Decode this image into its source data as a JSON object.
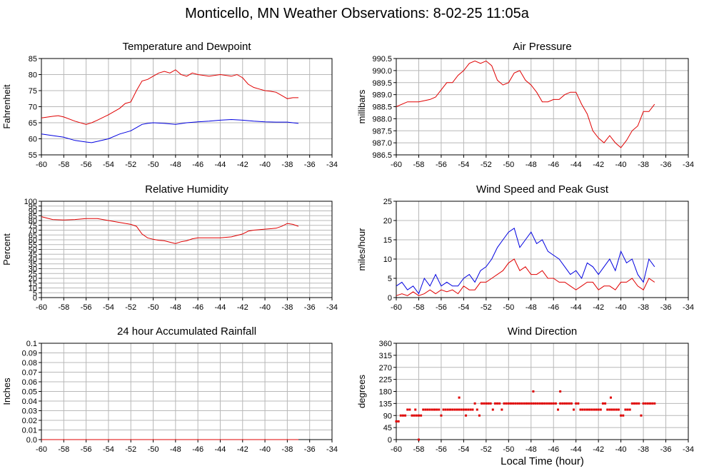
{
  "page": {
    "title": "Monticello, MN Weather Observations: 8-02-25 11:05a"
  },
  "colors": {
    "red": "#e00000",
    "blue": "#0000e0",
    "grid": "#b8b8b8",
    "axis": "#000000"
  },
  "chart_data": [
    {
      "type": "line",
      "title": "Temperature and Dewpoint",
      "ylabel": "Fahrenheit",
      "xlabel": "",
      "grid": true,
      "xlim": [
        -60,
        -34
      ],
      "ylim": [
        55,
        85
      ],
      "xticks": [
        "-60",
        "-58",
        "-56",
        "-54",
        "-52",
        "-50",
        "-48",
        "-46",
        "-44",
        "-42",
        "-40",
        "-38",
        "-36",
        "-34"
      ],
      "yticks": [
        "55",
        "60",
        "65",
        "70",
        "75",
        "80",
        "85"
      ],
      "series": [
        {
          "color": "red",
          "x": [
            -60,
            -59,
            -58.5,
            -58,
            -57,
            -56,
            -55.5,
            -55,
            -54,
            -53,
            -52.5,
            -52,
            -51.5,
            -51,
            -50.5,
            -50,
            -49.5,
            -49,
            -48.5,
            -48,
            -47.5,
            -47,
            -46.5,
            -46,
            -45,
            -44,
            -43,
            -42.5,
            -42,
            -41.5,
            -41,
            -40.5,
            -40,
            -39.5,
            -39,
            -38.5,
            -38,
            -37.5,
            -37
          ],
          "y": [
            66.5,
            67,
            67.2,
            66.8,
            65.5,
            64.5,
            65,
            65.8,
            67.5,
            69.5,
            71,
            71.5,
            75,
            78,
            78.5,
            79.5,
            80.5,
            81,
            80.5,
            81.5,
            80,
            79.5,
            80.5,
            80,
            79.5,
            80,
            79.5,
            80,
            79,
            77,
            76,
            75.5,
            75,
            74.8,
            74.5,
            73.5,
            72.5,
            72.8,
            72.8
          ]
        },
        {
          "color": "blue",
          "x": [
            -60,
            -59,
            -58,
            -57,
            -56,
            -55.5,
            -55,
            -54,
            -53,
            -52,
            -51.5,
            -51,
            -50.5,
            -50,
            -49,
            -48,
            -47,
            -46,
            -45,
            -44,
            -43,
            -42,
            -41,
            -40,
            -39,
            -38,
            -37.5,
            -37
          ],
          "y": [
            61.5,
            61,
            60.5,
            59.5,
            59,
            58.8,
            59.2,
            60,
            61.5,
            62.5,
            63.5,
            64.5,
            64.8,
            65,
            64.8,
            64.5,
            65,
            65.3,
            65.5,
            65.8,
            66,
            65.8,
            65.5,
            65.3,
            65.2,
            65.2,
            65,
            64.8
          ]
        }
      ]
    },
    {
      "type": "line",
      "title": "Air Pressure",
      "ylabel": "millibars",
      "xlabel": "",
      "grid": true,
      "xlim": [
        -60,
        -34
      ],
      "ylim": [
        986.5,
        990.5
      ],
      "xticks": [
        "-60",
        "-58",
        "-56",
        "-54",
        "-52",
        "-50",
        "-48",
        "-46",
        "-44",
        "-42",
        "-40",
        "-38",
        "-36",
        "-34"
      ],
      "yticks": [
        "986.5",
        "987.0",
        "987.5",
        "988.0",
        "988.5",
        "989.0",
        "989.5",
        "990.0",
        "990.5"
      ],
      "series": [
        {
          "color": "red",
          "x": [
            -60,
            -59,
            -58,
            -57,
            -56.5,
            -56,
            -55.5,
            -55,
            -54.5,
            -54,
            -53.5,
            -53,
            -52.5,
            -52,
            -51.5,
            -51,
            -50.5,
            -50,
            -49.5,
            -49,
            -48.5,
            -48,
            -47.5,
            -47,
            -46.5,
            -46,
            -45.5,
            -45,
            -44.5,
            -44,
            -43.5,
            -43,
            -42.5,
            -42,
            -41.5,
            -41,
            -40.5,
            -40,
            -39.5,
            -39,
            -38.5,
            -38,
            -37.5,
            -37
          ],
          "y": [
            988.5,
            988.7,
            988.7,
            988.8,
            988.9,
            989.2,
            989.5,
            989.5,
            989.8,
            990.0,
            990.3,
            990.4,
            990.3,
            990.4,
            990.2,
            989.6,
            989.4,
            989.5,
            989.9,
            990.0,
            989.6,
            989.4,
            989.1,
            988.7,
            988.7,
            988.8,
            988.8,
            989.0,
            989.1,
            989.1,
            988.6,
            988.2,
            987.5,
            987.2,
            987.0,
            987.3,
            987.0,
            986.8,
            987.1,
            987.5,
            987.7,
            988.3,
            988.3,
            988.6
          ]
        }
      ]
    },
    {
      "type": "line",
      "title": "Relative Humidity",
      "ylabel": "Percent",
      "xlabel": "",
      "grid": true,
      "xlim": [
        -60,
        -34
      ],
      "ylim": [
        0,
        100
      ],
      "xticks": [
        "-60",
        "-58",
        "-56",
        "-54",
        "-52",
        "-50",
        "-48",
        "-46",
        "-44",
        "-42",
        "-40",
        "-38",
        "-36",
        "-34"
      ],
      "yticks": [
        "0",
        "5",
        "10",
        "15",
        "20",
        "25",
        "30",
        "35",
        "40",
        "45",
        "50",
        "55",
        "60",
        "65",
        "70",
        "75",
        "80",
        "85",
        "90",
        "95",
        "100"
      ],
      "series": [
        {
          "color": "red",
          "x": [
            -60,
            -59,
            -58,
            -57,
            -56,
            -55,
            -54.5,
            -54,
            -53,
            -52,
            -51.5,
            -51,
            -50.5,
            -50,
            -49.5,
            -49,
            -48.5,
            -48,
            -47.5,
            -47,
            -46.5,
            -46,
            -45,
            -44,
            -43,
            -42,
            -41.5,
            -41,
            -40,
            -39,
            -38.5,
            -38,
            -37.5,
            -37
          ],
          "y": [
            84,
            81,
            80.5,
            81,
            82,
            82,
            81,
            80,
            78,
            76,
            74,
            66,
            62,
            60.5,
            59.5,
            59,
            57.5,
            56,
            58,
            59,
            61,
            62,
            62,
            62,
            63,
            66,
            69,
            70,
            71,
            72,
            74,
            77,
            76,
            74
          ]
        }
      ]
    },
    {
      "type": "line",
      "title": "Wind Speed and Peak Gust",
      "ylabel": "miles/hour",
      "xlabel": "",
      "grid": true,
      "xlim": [
        -60,
        -34
      ],
      "ylim": [
        0,
        25
      ],
      "xticks": [
        "-60",
        "-58",
        "-56",
        "-54",
        "-52",
        "-50",
        "-48",
        "-46",
        "-44",
        "-42",
        "-40",
        "-38",
        "-36",
        "-34"
      ],
      "yticks": [
        "0",
        "5",
        "10",
        "15",
        "20",
        "25"
      ],
      "series": [
        {
          "color": "blue",
          "x": [
            -60,
            -59.5,
            -59,
            -58.5,
            -58,
            -57.5,
            -57,
            -56.5,
            -56,
            -55.5,
            -55,
            -54.5,
            -54,
            -53.5,
            -53,
            -52.5,
            -52,
            -51.5,
            -51,
            -50.5,
            -50,
            -49.5,
            -49,
            -48.5,
            -48,
            -47.5,
            -47,
            -46.5,
            -46,
            -45.5,
            -45,
            -44.5,
            -44,
            -43.5,
            -43,
            -42.5,
            -42,
            -41.5,
            -41,
            -40.5,
            -40,
            -39.5,
            -39,
            -38.5,
            -38,
            -37.5,
            -37
          ],
          "y": [
            3,
            4,
            2,
            3,
            1,
            5,
            3,
            6,
            3,
            4,
            3,
            3,
            5,
            6,
            4,
            7,
            8,
            10,
            13,
            15,
            17,
            18,
            13,
            15,
            17,
            14,
            15,
            12,
            11,
            10,
            8,
            6,
            7,
            5,
            9,
            8,
            6,
            8,
            10,
            7,
            12,
            9,
            10,
            6,
            4,
            10,
            8
          ]
        },
        {
          "color": "red",
          "x": [
            -60,
            -59.5,
            -59,
            -58.5,
            -58,
            -57.5,
            -57,
            -56.5,
            -56,
            -55.5,
            -55,
            -54.5,
            -54,
            -53.5,
            -53,
            -52.5,
            -52,
            -51.5,
            -51,
            -50.5,
            -50,
            -49.5,
            -49,
            -48.5,
            -48,
            -47.5,
            -47,
            -46.5,
            -46,
            -45.5,
            -45,
            -44.5,
            -44,
            -43.5,
            -43,
            -42.5,
            -42,
            -41.5,
            -41,
            -40.5,
            -40,
            -39.5,
            -39,
            -38.5,
            -38,
            -37.5,
            -37
          ],
          "y": [
            0.5,
            1,
            0.5,
            1.5,
            0.5,
            1,
            2,
            1,
            2,
            1.5,
            2,
            1,
            3,
            2,
            2,
            4,
            4,
            5,
            6,
            7,
            9,
            10,
            7,
            8,
            6,
            6,
            7,
            5,
            5,
            4,
            4,
            3,
            2,
            3,
            4,
            4,
            2,
            3,
            3,
            2,
            4,
            4,
            5,
            3,
            2,
            5,
            4
          ]
        }
      ]
    },
    {
      "type": "line",
      "title": "24 hour Accumulated Rainfall",
      "ylabel": "Inches",
      "xlabel": "",
      "grid": true,
      "xlim": [
        -60,
        -34
      ],
      "ylim": [
        0,
        0.1
      ],
      "xticks": [
        "-60",
        "-58",
        "-56",
        "-54",
        "-52",
        "-50",
        "-48",
        "-46",
        "-44",
        "-42",
        "-40",
        "-38",
        "-36",
        "-34"
      ],
      "yticks": [
        "0.0",
        "0.01",
        "0.02",
        "0.03",
        "0.04",
        "0.05",
        "0.06",
        "0.07",
        "0.08",
        "0.09",
        "0.1"
      ],
      "series": [
        {
          "color": "red",
          "x": [
            -60,
            -37
          ],
          "y": [
            0,
            0
          ]
        }
      ]
    },
    {
      "type": "scatter",
      "title": "Wind Direction",
      "ylabel": "degrees",
      "xlabel": "Local Time (hour)",
      "grid": true,
      "xlim": [
        -60,
        -34
      ],
      "ylim": [
        0,
        360
      ],
      "xticks": [
        "-60",
        "-58",
        "-56",
        "-54",
        "-52",
        "-50",
        "-48",
        "-46",
        "-44",
        "-42",
        "-40",
        "-38",
        "-36",
        "-34"
      ],
      "yticks": [
        "0",
        "45",
        "90",
        "135",
        "180",
        "225",
        "270",
        "315",
        "360"
      ],
      "series": [
        {
          "color": "red",
          "x": [
            -60,
            -59.8,
            -59.6,
            -59.4,
            -59.2,
            -59,
            -58.8,
            -58.6,
            -58.4,
            -58.2,
            -58,
            -57.8,
            -57.6,
            -57.4,
            -57.2,
            -57,
            -56.8,
            -56.6,
            -56.4,
            -56.2,
            -56,
            -55.8,
            -55.6,
            -55.4,
            -55.2,
            -55,
            -54.8,
            -54.6,
            -54.4,
            -54.2,
            -54,
            -53.8,
            -53.6,
            -53.4,
            -53.2,
            -53,
            -52.8,
            -52.6,
            -52.4,
            -52.2,
            -52,
            -51.8,
            -51.6,
            -51.4,
            -51.2,
            -51,
            -50.8,
            -50.6,
            -50.4,
            -50.2,
            -50,
            -49.8,
            -49.6,
            -49.4,
            -49.2,
            -49,
            -48.8,
            -48.6,
            -48.4,
            -48.2,
            -48,
            -47.8,
            -47.6,
            -47.4,
            -47.2,
            -47,
            -46.8,
            -46.6,
            -46.4,
            -46.2,
            -46,
            -45.8,
            -45.6,
            -45.4,
            -45.2,
            -45,
            -44.8,
            -44.6,
            -44.4,
            -44.2,
            -44,
            -43.8,
            -43.6,
            -43.4,
            -43.2,
            -43,
            -42.8,
            -42.6,
            -42.4,
            -42.2,
            -42,
            -41.8,
            -41.6,
            -41.4,
            -41.2,
            -41,
            -40.8,
            -40.6,
            -40.4,
            -40.2,
            -40,
            -39.8,
            -39.6,
            -39.4,
            -39.2,
            -39,
            -38.8,
            -38.6,
            -38.4,
            -38.2,
            -38,
            -37.8,
            -37.6,
            -37.4,
            -37.2,
            -37,
            -58,
            -54.4,
            -47.8,
            -45.4,
            -40.9,
            -53.8,
            -58.3
          ],
          "y": [
            68,
            68,
            90,
            90,
            90,
            112,
            112,
            90,
            90,
            90,
            90,
            90,
            112,
            112,
            112,
            112,
            112,
            112,
            112,
            112,
            90,
            112,
            112,
            112,
            112,
            112,
            112,
            112,
            112,
            112,
            112,
            112,
            112,
            112,
            112,
            135,
            112,
            90,
            135,
            135,
            135,
            135,
            135,
            112,
            135,
            135,
            135,
            112,
            135,
            135,
            135,
            135,
            135,
            135,
            135,
            135,
            135,
            135,
            135,
            135,
            135,
            135,
            135,
            135,
            135,
            135,
            135,
            135,
            135,
            135,
            135,
            135,
            112,
            135,
            135,
            135,
            135,
            135,
            135,
            112,
            135,
            135,
            112,
            112,
            112,
            112,
            112,
            112,
            112,
            112,
            112,
            112,
            135,
            135,
            112,
            112,
            112,
            112,
            112,
            112,
            90,
            90,
            112,
            112,
            112,
            135,
            135,
            135,
            135,
            90,
            135,
            135,
            135,
            135,
            135,
            135,
            0,
            157,
            180,
            180,
            157,
            90,
            112
          ]
        }
      ]
    }
  ]
}
